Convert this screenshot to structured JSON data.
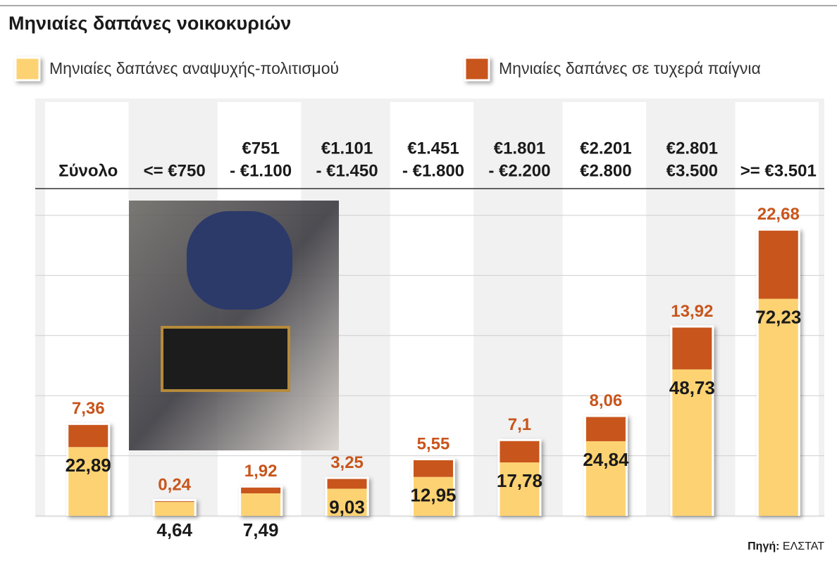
{
  "chart_data": {
    "type": "stacked-bar",
    "title": "Μηνιαίες δαπάνες νοικοκυριών",
    "categories": [
      [
        "Σύνολο"
      ],
      [
        "<= €750"
      ],
      [
        "€751",
        "- €1.100"
      ],
      [
        "€1.101",
        "- €1.450"
      ],
      [
        "€1.451",
        "- €1.800"
      ],
      [
        "€1.801",
        "- €2.200"
      ],
      [
        "€2.201",
        "€2.800"
      ],
      [
        "€2.801",
        "€3.500"
      ],
      [
        ">= €3.501"
      ]
    ],
    "series": [
      {
        "name": "Μηνιαίες δαπάνες αναψυχής-πολιτισμού",
        "color": "#fdd272",
        "values": [
          22.89,
          4.64,
          7.49,
          9.03,
          12.95,
          17.78,
          24.84,
          48.73,
          72.23
        ],
        "value_labels": [
          "22,89",
          "4,64",
          "7,49",
          "9,03",
          "12,95",
          "17,78",
          "24,84",
          "48,73",
          "72,23"
        ]
      },
      {
        "name": "Μηνιαίες δαπάνες σε τυχερά παίγνια",
        "color": "#c8551c",
        "values": [
          7.36,
          0.24,
          1.92,
          3.25,
          5.55,
          7.1,
          8.06,
          13.92,
          22.68
        ],
        "value_labels": [
          "7,36",
          "0,24",
          "1,92",
          "3,25",
          "5,55",
          "7,1",
          "8,06",
          "13,92",
          "22,68"
        ]
      }
    ],
    "ylim": [
      0,
      100
    ],
    "yticks": [
      0,
      20,
      40,
      60,
      80,
      100
    ],
    "grid": true,
    "source_label": "Πηγή:",
    "source": "ΕΛΣΤΑΤ"
  }
}
